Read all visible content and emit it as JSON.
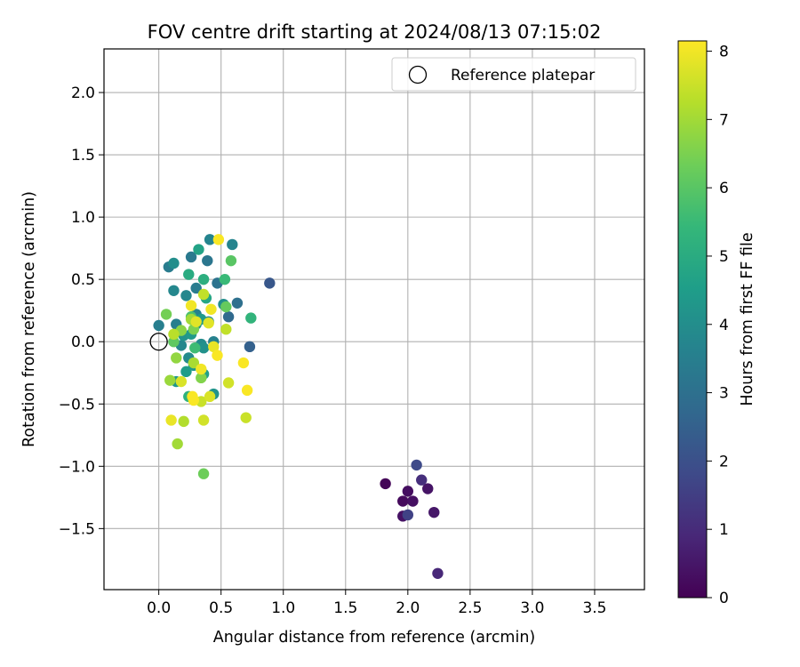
{
  "chart_data": {
    "type": "scatter",
    "title": "FOV centre drift starting at 2024/08/13 07:15:02",
    "xlabel": "Angular distance from reference (arcmin)",
    "ylabel": "Rotation from reference (arcmin)",
    "xlim": [
      -0.44,
      3.9
    ],
    "ylim": [
      -1.99,
      2.35
    ],
    "xticks": [
      0.0,
      0.5,
      1.0,
      1.5,
      2.0,
      2.5,
      3.0,
      3.5
    ],
    "xtick_labels": [
      "0.0",
      "0.5",
      "1.0",
      "1.5",
      "2.0",
      "2.5",
      "3.0",
      "3.5"
    ],
    "yticks": [
      -1.5,
      -1.0,
      -0.5,
      0.0,
      0.5,
      1.0,
      1.5,
      2.0
    ],
    "ytick_labels": [
      "−1.5",
      "−1.0",
      "−0.5",
      "0.0",
      "0.5",
      "1.0",
      "1.5",
      "2.0"
    ],
    "grid": true,
    "legend": {
      "placement": "top-right",
      "entries": [
        "Reference platepar"
      ]
    },
    "reference_point": {
      "name": "Reference platepar",
      "x": 0.0,
      "y": 0.0
    },
    "colorbar": {
      "label": "Hours from first FF file",
      "colormap": "viridis",
      "range": [
        0,
        8.15
      ],
      "ticks": [
        0,
        1,
        2,
        3,
        4,
        5,
        6,
        7,
        8
      ],
      "tick_labels": [
        "0",
        "1",
        "2",
        "3",
        "4",
        "5",
        "6",
        "7",
        "8"
      ],
      "colors": [
        "#440154",
        "#482878",
        "#3e4a89",
        "#31688e",
        "#26828e",
        "#1f9e89",
        "#35b779",
        "#6ece58",
        "#b5de2b",
        "#fde725"
      ]
    },
    "points": [
      {
        "x": 1.82,
        "y": -1.14,
        "h": 0.1
      },
      {
        "x": 1.96,
        "y": -1.28,
        "h": 0.2
      },
      {
        "x": 2.0,
        "y": -1.2,
        "h": 0.3
      },
      {
        "x": 2.04,
        "y": -1.28,
        "h": 0.35
      },
      {
        "x": 1.96,
        "y": -1.4,
        "h": 0.4
      },
      {
        "x": 2.16,
        "y": -1.18,
        "h": 0.45
      },
      {
        "x": 2.21,
        "y": -1.37,
        "h": 0.5
      },
      {
        "x": 2.24,
        "y": -1.86,
        "h": 0.9
      },
      {
        "x": 2.11,
        "y": -1.11,
        "h": 1.1
      },
      {
        "x": 2.0,
        "y": -1.39,
        "h": 1.6
      },
      {
        "x": 2.07,
        "y": -0.99,
        "h": 1.8
      },
      {
        "x": 0.89,
        "y": 0.47,
        "h": 2.2
      },
      {
        "x": 0.73,
        "y": -0.04,
        "h": 2.5
      },
      {
        "x": 0.56,
        "y": 0.2,
        "h": 2.8
      },
      {
        "x": 0.63,
        "y": 0.31,
        "h": 3.0
      },
      {
        "x": 0.47,
        "y": 0.47,
        "h": 3.1
      },
      {
        "x": 0.39,
        "y": 0.65,
        "h": 3.2
      },
      {
        "x": 0.26,
        "y": 0.68,
        "h": 3.3
      },
      {
        "x": 0.3,
        "y": 0.43,
        "h": 3.4
      },
      {
        "x": 0.08,
        "y": 0.6,
        "h": 3.4
      },
      {
        "x": 0.14,
        "y": 0.14,
        "h": 3.5
      },
      {
        "x": 0.0,
        "y": 0.13,
        "h": 3.5
      },
      {
        "x": 0.44,
        "y": 0.0,
        "h": 3.6
      },
      {
        "x": 0.3,
        "y": 0.22,
        "h": 3.6
      },
      {
        "x": 0.59,
        "y": 0.78,
        "h": 3.7
      },
      {
        "x": 0.41,
        "y": 0.82,
        "h": 3.7
      },
      {
        "x": 0.12,
        "y": 0.41,
        "h": 3.8
      },
      {
        "x": 0.22,
        "y": 0.37,
        "h": 3.8
      },
      {
        "x": 0.18,
        "y": -0.03,
        "h": 3.8
      },
      {
        "x": 0.24,
        "y": -0.13,
        "h": 3.9
      },
      {
        "x": 0.34,
        "y": -0.02,
        "h": 3.9
      },
      {
        "x": 0.4,
        "y": 0.16,
        "h": 3.9
      },
      {
        "x": 0.12,
        "y": 0.63,
        "h": 4.0
      },
      {
        "x": 0.52,
        "y": 0.3,
        "h": 4.0
      },
      {
        "x": 0.36,
        "y": -0.05,
        "h": 4.1
      },
      {
        "x": 0.3,
        "y": 0.14,
        "h": 4.1
      },
      {
        "x": 0.2,
        "y": 0.05,
        "h": 4.2
      },
      {
        "x": 0.44,
        "y": -0.42,
        "h": 4.2
      },
      {
        "x": 0.14,
        "y": -0.32,
        "h": 4.3
      },
      {
        "x": 0.28,
        "y": -0.19,
        "h": 4.3
      },
      {
        "x": 0.26,
        "y": 0.06,
        "h": 4.4
      },
      {
        "x": 0.34,
        "y": 0.18,
        "h": 4.4
      },
      {
        "x": 0.22,
        "y": -0.24,
        "h": 4.5
      },
      {
        "x": 0.36,
        "y": -0.26,
        "h": 4.6
      },
      {
        "x": 0.32,
        "y": 0.74,
        "h": 4.7
      },
      {
        "x": 0.38,
        "y": 0.35,
        "h": 4.8
      },
      {
        "x": 0.24,
        "y": 0.54,
        "h": 5.0
      },
      {
        "x": 0.36,
        "y": 0.5,
        "h": 5.1
      },
      {
        "x": 0.24,
        "y": -0.44,
        "h": 5.2
      },
      {
        "x": 0.74,
        "y": 0.19,
        "h": 5.3
      },
      {
        "x": 0.53,
        "y": 0.5,
        "h": 5.5
      },
      {
        "x": 0.29,
        "y": -0.05,
        "h": 5.6
      },
      {
        "x": 0.26,
        "y": 0.2,
        "h": 5.8
      },
      {
        "x": 0.58,
        "y": 0.65,
        "h": 6.0
      },
      {
        "x": 0.12,
        "y": 0.0,
        "h": 6.1
      },
      {
        "x": 0.54,
        "y": 0.28,
        "h": 6.2
      },
      {
        "x": 0.36,
        "y": -1.06,
        "h": 6.3
      },
      {
        "x": 0.06,
        "y": 0.22,
        "h": 6.4
      },
      {
        "x": 0.28,
        "y": 0.1,
        "h": 6.5
      },
      {
        "x": 0.34,
        "y": -0.29,
        "h": 6.6
      },
      {
        "x": 0.18,
        "y": 0.09,
        "h": 6.7
      },
      {
        "x": 0.14,
        "y": -0.13,
        "h": 6.8
      },
      {
        "x": 0.09,
        "y": -0.31,
        "h": 6.9
      },
      {
        "x": 0.15,
        "y": -0.82,
        "h": 7.0
      },
      {
        "x": 0.26,
        "y": 0.18,
        "h": 7.0
      },
      {
        "x": 0.28,
        "y": -0.17,
        "h": 7.1
      },
      {
        "x": 0.2,
        "y": -0.64,
        "h": 7.2
      },
      {
        "x": 0.12,
        "y": 0.06,
        "h": 7.3
      },
      {
        "x": 0.36,
        "y": 0.38,
        "h": 7.4
      },
      {
        "x": 0.54,
        "y": 0.1,
        "h": 7.4
      },
      {
        "x": 0.34,
        "y": -0.48,
        "h": 7.5
      },
      {
        "x": 0.7,
        "y": -0.61,
        "h": 7.5
      },
      {
        "x": 0.36,
        "y": -0.63,
        "h": 7.6
      },
      {
        "x": 0.56,
        "y": -0.33,
        "h": 7.6
      },
      {
        "x": 0.18,
        "y": -0.32,
        "h": 7.7
      },
      {
        "x": 0.41,
        "y": -0.44,
        "h": 7.7
      },
      {
        "x": 0.3,
        "y": 0.16,
        "h": 7.8
      },
      {
        "x": 0.4,
        "y": 0.15,
        "h": 7.8
      },
      {
        "x": 0.44,
        "y": -0.04,
        "h": 7.9
      },
      {
        "x": 0.1,
        "y": -0.63,
        "h": 7.9
      },
      {
        "x": 0.26,
        "y": 0.29,
        "h": 8.0
      },
      {
        "x": 0.42,
        "y": 0.26,
        "h": 8.0
      },
      {
        "x": 0.34,
        "y": -0.22,
        "h": 8.0
      },
      {
        "x": 0.48,
        "y": 0.82,
        "h": 8.1
      },
      {
        "x": 0.47,
        "y": -0.11,
        "h": 8.1
      },
      {
        "x": 0.28,
        "y": -0.47,
        "h": 8.1
      },
      {
        "x": 0.27,
        "y": -0.44,
        "h": 8.1
      },
      {
        "x": 0.68,
        "y": -0.17,
        "h": 8.1
      },
      {
        "x": 0.71,
        "y": -0.39,
        "h": 8.1
      }
    ]
  }
}
